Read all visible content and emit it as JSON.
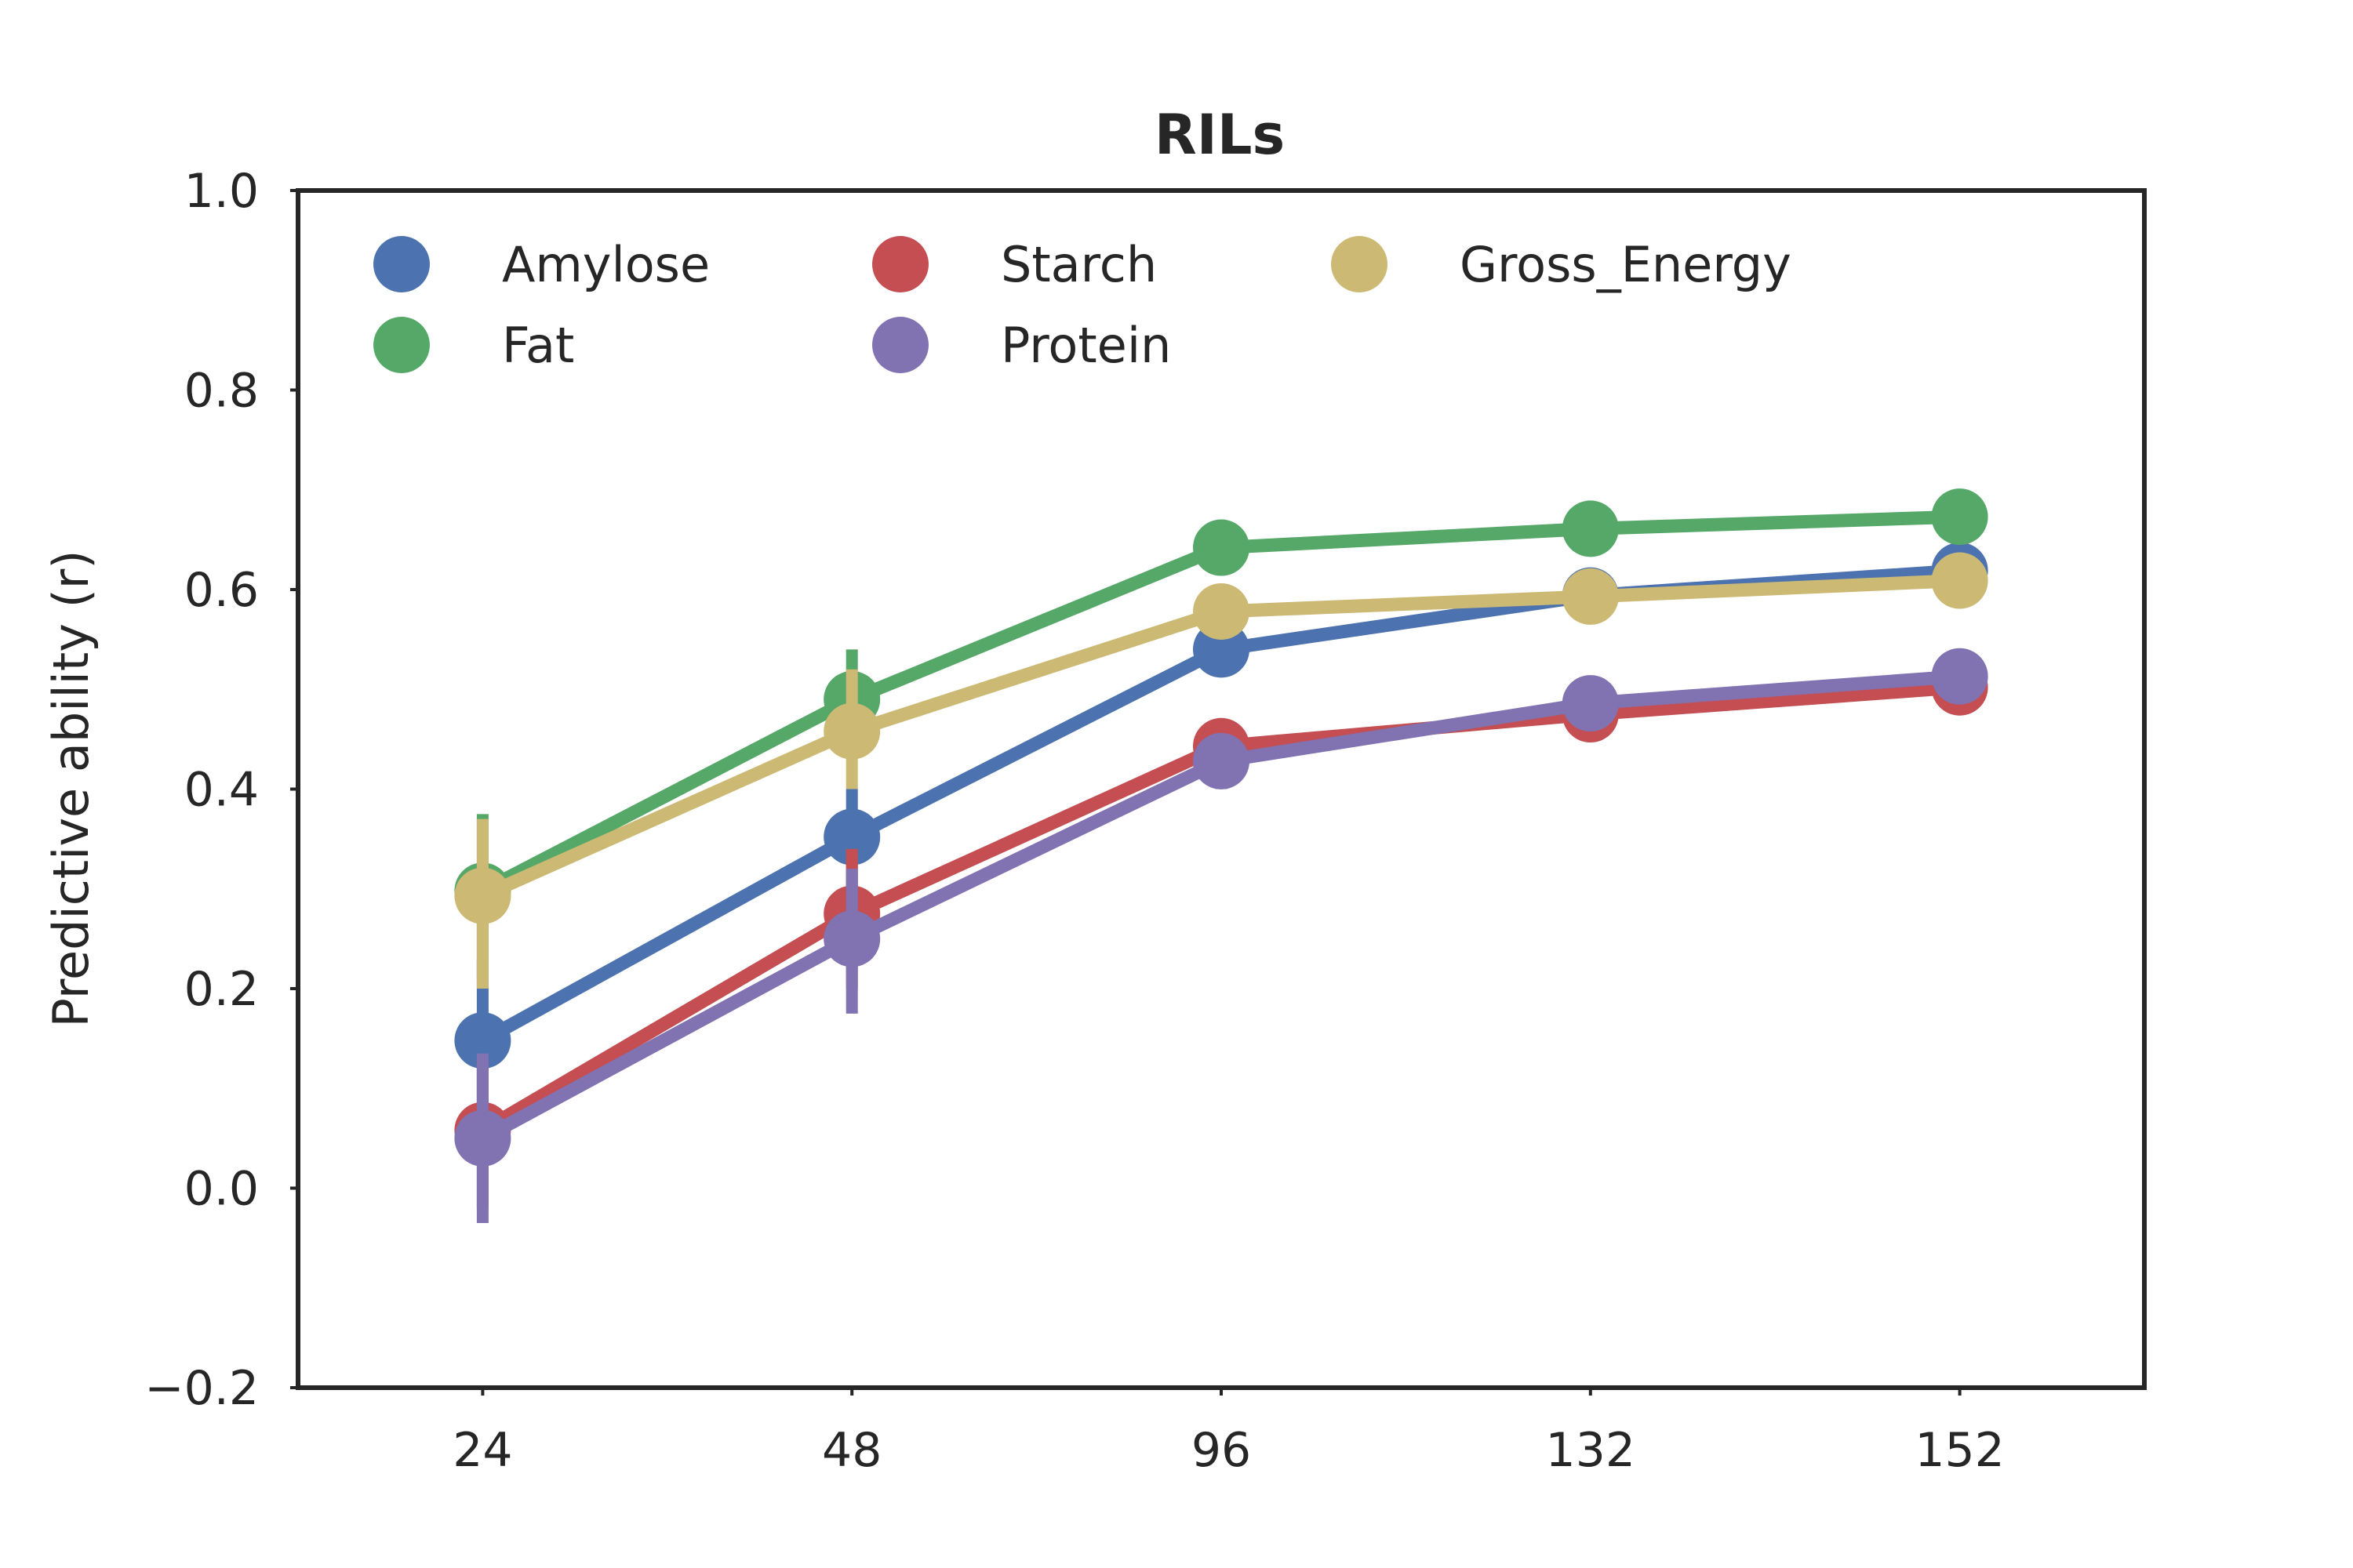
{
  "chart_data": {
    "type": "line",
    "title": "RILs",
    "xlabel": "",
    "ylabel": "Predictive ability (r)",
    "categories": [
      "24",
      "48",
      "96",
      "132",
      "152"
    ],
    "ylim": [
      -0.2,
      1.0
    ],
    "yticks": [
      -0.2,
      0.0,
      0.2,
      0.4,
      0.6,
      0.8,
      1.0
    ],
    "ytick_labels": [
      "−0.2",
      "0.0",
      "0.2",
      "0.4",
      "0.6",
      "0.8",
      "1.0"
    ],
    "grid": false,
    "legend_position": "top-left, 3 columns",
    "series": [
      {
        "name": "Amylose",
        "color": "#4c72b0",
        "values": [
          0.148,
          0.352,
          0.54,
          0.594,
          0.619
        ],
        "err_low": [
          0.06,
          0.3,
          0.52,
          0.58,
          0.61
        ],
        "err_high": [
          0.23,
          0.4,
          0.56,
          0.61,
          0.63
        ]
      },
      {
        "name": "Fat",
        "color": "#55a868",
        "values": [
          0.298,
          0.49,
          0.642,
          0.661,
          0.673
        ],
        "err_low": [
          0.21,
          0.44,
          0.63,
          0.65,
          0.665
        ],
        "err_high": [
          0.375,
          0.54,
          0.655,
          0.672,
          0.682
        ]
      },
      {
        "name": "Starch",
        "color": "#c44e52",
        "values": [
          0.058,
          0.275,
          0.443,
          0.475,
          0.502
        ],
        "err_low": [
          -0.02,
          0.2,
          0.42,
          0.46,
          0.49
        ],
        "err_high": [
          0.13,
          0.34,
          0.465,
          0.49,
          0.515
        ]
      },
      {
        "name": "Protein",
        "color": "#8172b2",
        "values": [
          0.05,
          0.25,
          0.428,
          0.486,
          0.513
        ],
        "err_low": [
          -0.035,
          0.175,
          0.4,
          0.47,
          0.5
        ],
        "err_high": [
          0.135,
          0.32,
          0.455,
          0.5,
          0.525
        ]
      },
      {
        "name": "Gross_Energy",
        "color": "#ccb974",
        "values": [
          0.293,
          0.458,
          0.578,
          0.593,
          0.609
        ],
        "err_low": [
          0.2,
          0.4,
          0.565,
          0.58,
          0.6
        ],
        "err_high": [
          0.37,
          0.52,
          0.59,
          0.605,
          0.618
        ]
      }
    ]
  }
}
